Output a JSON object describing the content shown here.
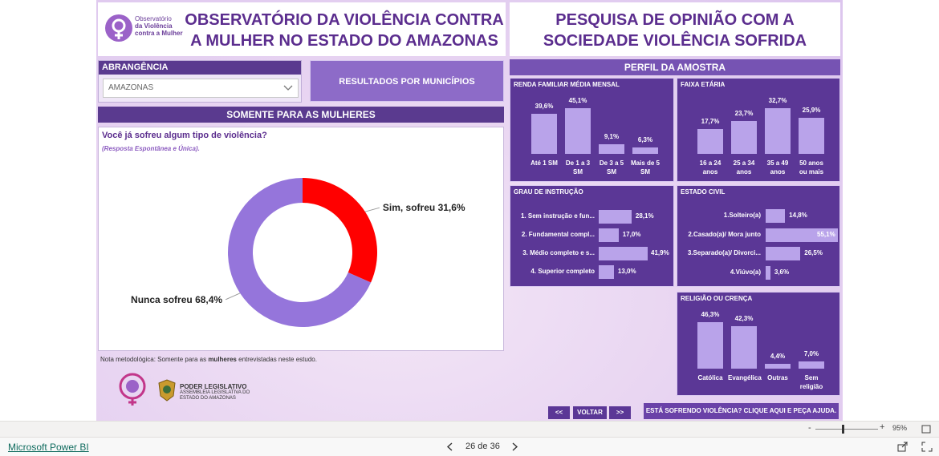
{
  "logo": {
    "lines": [
      "Observatório",
      "da Violência",
      "contra a Mulher"
    ]
  },
  "header": {
    "title_left": "OBSERVATÓRIO DA VIOLÊNCIA CONTRA A MULHER NO ESTADO DO AMAZONAS",
    "title_right": "PESQUISA DE OPINIÃO COM A SOCIEDADE VIOLÊNCIA SOFRIDA"
  },
  "filter": {
    "label": "ABRANGÊNCIA",
    "value": "AMAZONAS"
  },
  "button_municipios": "RESULTADOS POR MUNICÍPIOS",
  "section_left": "SOMENTE PARA AS MULHERES",
  "section_right": "PERFIL DA AMOSTRA",
  "note": [
    "Nota metodológica: Somente para as ",
    "mulheres",
    " entrevistadas neste estudo."
  ],
  "footer_logo": [
    "PODER LEGISLATIVO",
    "ASSEMBLEIA LEGISLATIVA DO",
    "ESTADO DO AMAZONAS"
  ],
  "nav": {
    "first": "<<",
    "back": "VOLTAR",
    "last": ">>",
    "help": "ESTÁ SOFRENDO VIOLÊNCIA? CLIQUE AQUI E PEÇA AJUDA."
  },
  "app_bar": {
    "zoom_minus": "-",
    "zoom_plus": "+",
    "zoom": "95%",
    "app_name": "Microsoft Power BI",
    "page_indicator": "26 de 36"
  },
  "chart_data": [
    {
      "type": "donut",
      "title": "Você já sofreu algum tipo de violência?",
      "subtitle": "(Resposta Espontânea e Única).",
      "categories": [
        "Sim, sofreu",
        "Nunca sofreu"
      ],
      "values": [
        31.6,
        68.4
      ],
      "value_labels": [
        "31,6%",
        "68,4%"
      ],
      "colors": [
        "#ff0000",
        "#9575db"
      ]
    },
    {
      "type": "bar",
      "title": "RENDA FAMILIAR MÉDIA MENSAL",
      "categories": [
        "Até 1 SM",
        "De 1 a 3 SM",
        "De 3 a 5 SM",
        "Mais de 5 SM"
      ],
      "values": [
        39.6,
        45.1,
        9.1,
        6.3
      ],
      "value_labels": [
        "39,6%",
        "45,1%",
        "9,1%",
        "6,3%"
      ],
      "color": "#b9a3ea"
    },
    {
      "type": "bar",
      "title": "FAIXA ETÁRIA",
      "categories": [
        "16 a 24 anos",
        "25 a 34 anos",
        "35 a 49 anos",
        "50 anos ou mais"
      ],
      "values": [
        17.7,
        23.7,
        32.7,
        25.9
      ],
      "value_labels": [
        "17,7%",
        "23,7%",
        "32,7%",
        "25,9%"
      ],
      "color": "#b9a3ea"
    },
    {
      "type": "barh",
      "title": "GRAU DE INSTRUÇÃO",
      "categories": [
        "1. Sem instrução e fun...",
        "2. Fundamental compl...",
        "3. Médio completo e s...",
        "4. Superior completo"
      ],
      "values": [
        28.1,
        17.0,
        41.9,
        13.0
      ],
      "value_labels": [
        "28,1%",
        "17,0%",
        "41,9%",
        "13,0%"
      ],
      "color": "#b9a3ea"
    },
    {
      "type": "barh",
      "title": "ESTADO CIVIL",
      "categories": [
        "1.Solteiro(a)",
        "2.Casado(a)/ Mora junto",
        "3.Separado(a)/ Divorci...",
        "4.Viúvo(a)"
      ],
      "values": [
        14.8,
        55.1,
        26.5,
        3.6
      ],
      "value_labels": [
        "14,8%",
        "55,1%",
        "26,5%",
        "3,6%"
      ],
      "color": "#b9a3ea"
    },
    {
      "type": "bar",
      "title": "RELIGIÃO OU CRENÇA",
      "categories": [
        "Católica",
        "Evangélica",
        "Outras",
        "Sem religião"
      ],
      "values": [
        46.3,
        42.3,
        4.4,
        7.0
      ],
      "value_labels": [
        "46,3%",
        "42,3%",
        "4,4%",
        "7,0%"
      ],
      "color": "#b9a3ea"
    }
  ]
}
